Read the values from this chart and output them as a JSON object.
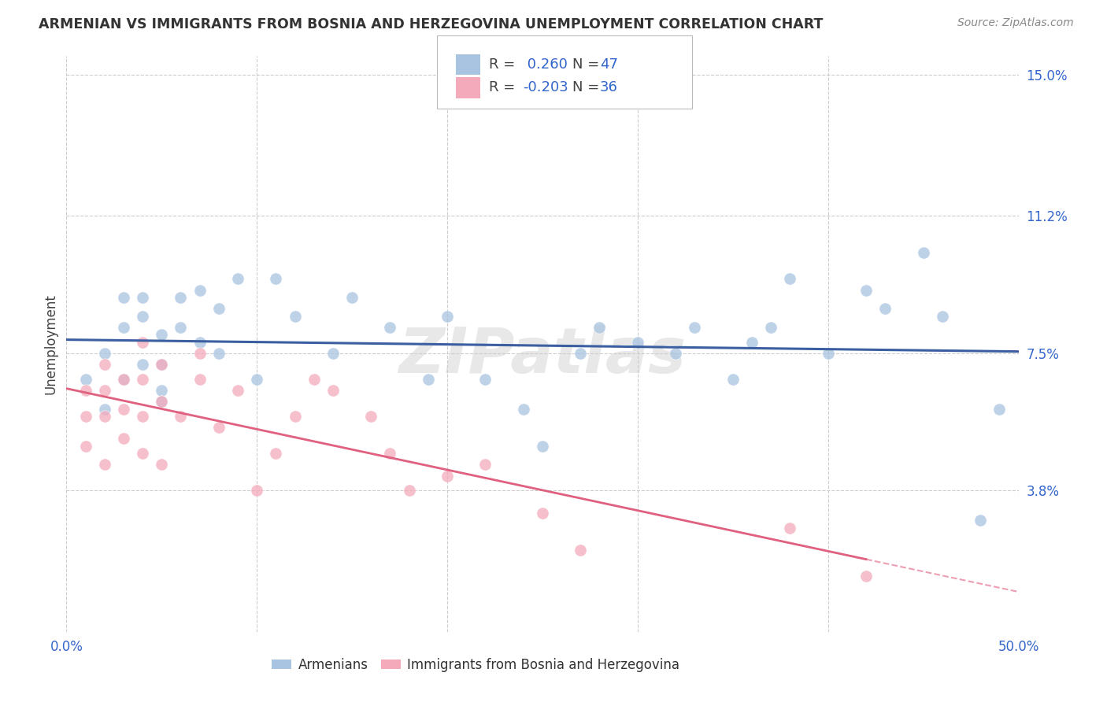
{
  "title": "ARMENIAN VS IMMIGRANTS FROM BOSNIA AND HERZEGOVINA UNEMPLOYMENT CORRELATION CHART",
  "source": "Source: ZipAtlas.com",
  "ylabel": "Unemployment",
  "x_min": 0.0,
  "x_max": 0.5,
  "y_min": 0.0,
  "y_max": 0.155,
  "y_ticks": [
    0.038,
    0.075,
    0.112,
    0.15
  ],
  "y_tick_labels": [
    "3.8%",
    "7.5%",
    "11.2%",
    "15.0%"
  ],
  "x_ticks": [
    0.0,
    0.1,
    0.2,
    0.3,
    0.4,
    0.5
  ],
  "x_tick_labels": [
    "0.0%",
    "",
    "",
    "",
    "",
    "50.0%"
  ],
  "legend_blue_label": "Armenians",
  "legend_pink_label": "Immigrants from Bosnia and Herzegovina",
  "r_blue": "0.260",
  "n_blue": "47",
  "r_pink": "-0.203",
  "n_pink": "36",
  "blue_color": "#A8C4E0",
  "pink_color": "#F4AABB",
  "blue_line_color": "#3B5FA0",
  "pink_line_color": "#E06080",
  "background_color": "#FFFFFF",
  "grid_color": "#CCCCCC",
  "watermark": "ZIPatlas",
  "blue_scatter_x": [
    0.01,
    0.02,
    0.02,
    0.03,
    0.03,
    0.03,
    0.04,
    0.04,
    0.04,
    0.05,
    0.05,
    0.05,
    0.05,
    0.06,
    0.06,
    0.07,
    0.07,
    0.08,
    0.08,
    0.09,
    0.1,
    0.11,
    0.12,
    0.14,
    0.15,
    0.17,
    0.19,
    0.2,
    0.22,
    0.24,
    0.25,
    0.27,
    0.28,
    0.3,
    0.32,
    0.33,
    0.35,
    0.36,
    0.37,
    0.38,
    0.4,
    0.42,
    0.43,
    0.45,
    0.46,
    0.48,
    0.49
  ],
  "blue_scatter_y": [
    0.068,
    0.075,
    0.06,
    0.09,
    0.082,
    0.068,
    0.09,
    0.085,
    0.072,
    0.08,
    0.072,
    0.065,
    0.062,
    0.09,
    0.082,
    0.092,
    0.078,
    0.087,
    0.075,
    0.095,
    0.068,
    0.095,
    0.085,
    0.075,
    0.09,
    0.082,
    0.068,
    0.085,
    0.068,
    0.06,
    0.05,
    0.075,
    0.082,
    0.078,
    0.075,
    0.082,
    0.068,
    0.078,
    0.082,
    0.095,
    0.075,
    0.092,
    0.087,
    0.102,
    0.085,
    0.03,
    0.06
  ],
  "pink_scatter_x": [
    0.01,
    0.01,
    0.01,
    0.02,
    0.02,
    0.02,
    0.02,
    0.03,
    0.03,
    0.03,
    0.04,
    0.04,
    0.04,
    0.04,
    0.05,
    0.05,
    0.05,
    0.06,
    0.07,
    0.07,
    0.08,
    0.09,
    0.1,
    0.11,
    0.12,
    0.13,
    0.14,
    0.16,
    0.17,
    0.18,
    0.2,
    0.22,
    0.25,
    0.27,
    0.38,
    0.42
  ],
  "pink_scatter_y": [
    0.065,
    0.058,
    0.05,
    0.072,
    0.065,
    0.058,
    0.045,
    0.068,
    0.06,
    0.052,
    0.078,
    0.068,
    0.058,
    0.048,
    0.072,
    0.062,
    0.045,
    0.058,
    0.075,
    0.068,
    0.055,
    0.065,
    0.038,
    0.048,
    0.058,
    0.068,
    0.065,
    0.058,
    0.048,
    0.038,
    0.042,
    0.045,
    0.032,
    0.022,
    0.028,
    0.015
  ]
}
